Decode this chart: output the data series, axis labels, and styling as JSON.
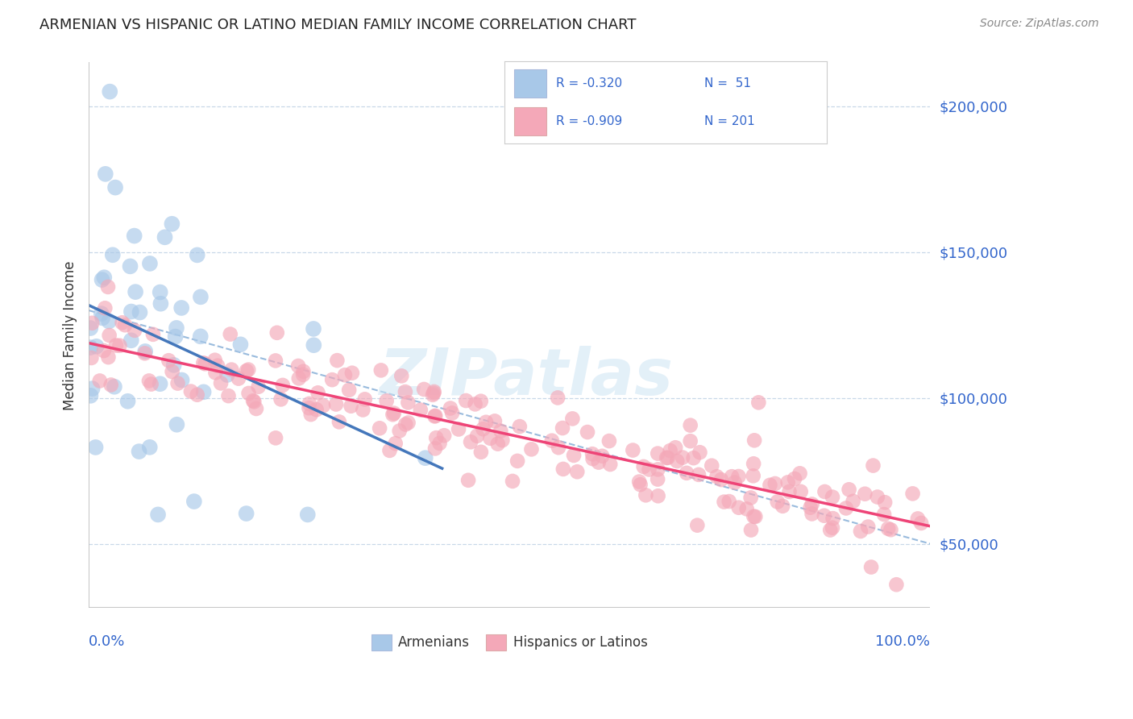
{
  "title": "ARMENIAN VS HISPANIC OR LATINO MEDIAN FAMILY INCOME CORRELATION CHART",
  "source": "Source: ZipAtlas.com",
  "ylabel": "Median Family Income",
  "yticks": [
    50000,
    100000,
    150000,
    200000
  ],
  "ytick_labels": [
    "$50,000",
    "$100,000",
    "$150,000",
    "$200,000"
  ],
  "xmin": 0.0,
  "xmax": 100.0,
  "ymin": 28000,
  "ymax": 215000,
  "armenian_color": "#a8c8e8",
  "hispanic_color": "#f4a8b8",
  "armenian_line_color": "#4477bb",
  "hispanic_line_color": "#ee4477",
  "dash_line_color": "#99bbdd",
  "text_color_blue": "#3366cc",
  "grid_color": "#c8d8e8",
  "axis_color": "#bbbbbb",
  "legend_R1": "R = -0.320",
  "legend_N1": "N =  51",
  "legend_R2": "R = -0.909",
  "legend_N2": "N = 201",
  "watermark": "ZIPatlas",
  "armenian_R": -0.32,
  "armenian_N": 51,
  "hispanic_R": -0.909,
  "hispanic_N": 201,
  "arm_intercept": 122000,
  "arm_slope": -300,
  "hisp_intercept": 118000,
  "hisp_slope": -680,
  "dash_intercept": 130000,
  "dash_slope": -800
}
